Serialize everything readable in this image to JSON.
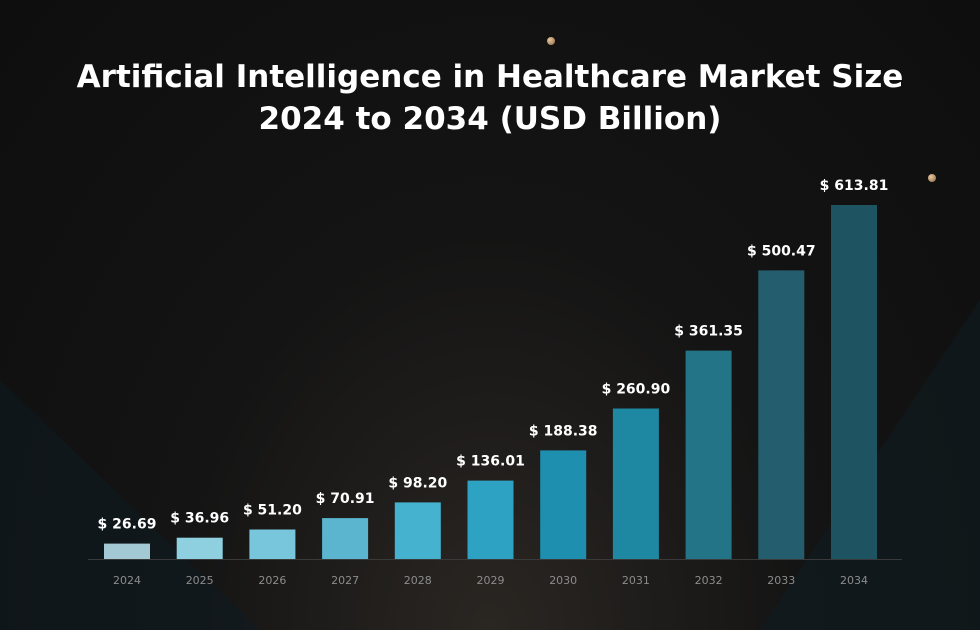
{
  "chart_data": {
    "type": "bar",
    "title": "Artificial Intelligence in Healthcare Market Size",
    "subtitle": "2024 to 2034 (USD Billion)",
    "xlabel": "",
    "ylabel": "",
    "categories": [
      "2024",
      "2025",
      "2026",
      "2027",
      "2028",
      "2029",
      "2030",
      "2031",
      "2032",
      "2033",
      "2034"
    ],
    "values": [
      26.69,
      36.96,
      51.2,
      70.91,
      98.2,
      136.01,
      188.38,
      260.9,
      361.35,
      500.47,
      613.81
    ],
    "value_labels": [
      "$ 26.69",
      "$ 36.96",
      "$ 51.20",
      "$ 70.91",
      "$ 98.20",
      "$ 136.01",
      "$ 188.38",
      "$ 260.90",
      "$ 361.35",
      "$ 500.47",
      "$ 613.81"
    ],
    "ylim": [
      0,
      613.81
    ],
    "grid": false,
    "legend": "none",
    "colors": [
      "#a3c9d4",
      "#8fd0e0",
      "#78c6dc",
      "#5bb5cf",
      "#45b3d0",
      "#2ea2c2",
      "#1f8fb0",
      "#1e87a2",
      "#237487",
      "#245e6e",
      "#1e5362"
    ],
    "baseline_color": "#3a3a3a",
    "label_color": "#ffffff",
    "tick_color": "#8c8c8c"
  }
}
